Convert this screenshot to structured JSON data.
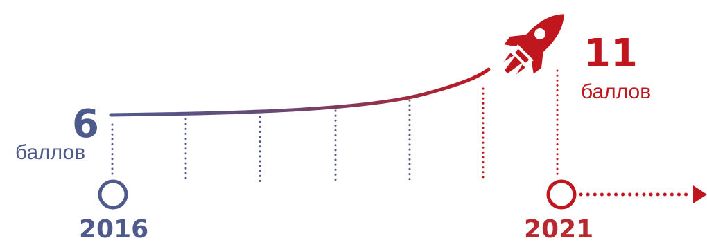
{
  "start": {
    "value": "6",
    "unit": "баллов",
    "year": "2016"
  },
  "end": {
    "value": "11",
    "unit": "баллов",
    "year": "2021"
  },
  "colors": {
    "start": "#4e5a8c",
    "end": "#c0161e",
    "year_end": "#b7292f"
  },
  "icons": {
    "rocket": "rocket-icon",
    "arrow": "arrow-right-icon"
  }
}
